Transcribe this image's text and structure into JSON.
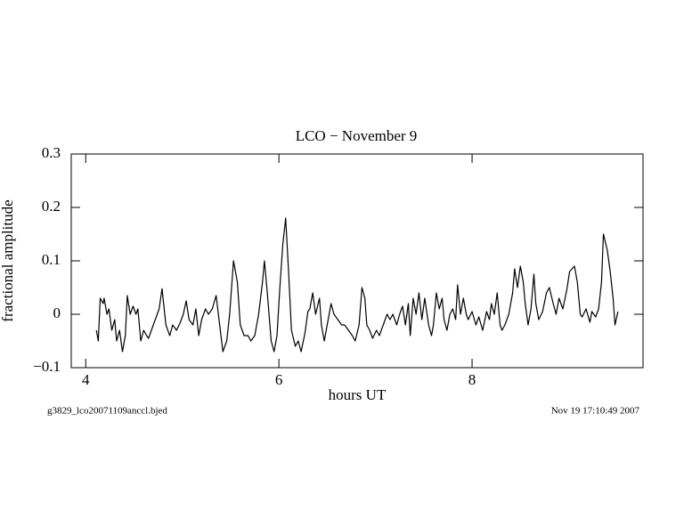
{
  "chart_data": {
    "type": "line",
    "title": "LCO − November 9",
    "xlabel": "hours UT",
    "ylabel": "fractional amplitude",
    "annotations": [
      "g3829_lco20071109anccl.bjed",
      "Nov 19 17:10:49 2007"
    ],
    "xlim": [
      3.85,
      9.77
    ],
    "ylim": [
      -0.1,
      0.3
    ],
    "xticks": [
      4,
      6,
      8
    ],
    "yticks": [
      {
        "value": -0.1,
        "label": "−0.1"
      },
      0,
      0.1,
      0.2,
      0.3
    ],
    "grid": false,
    "series": [
      {
        "color": "#000000",
        "x": [
          4.11,
          4.13,
          4.15,
          4.18,
          4.19,
          4.22,
          4.24,
          4.27,
          4.3,
          4.32,
          4.35,
          4.38,
          4.41,
          4.43,
          4.46,
          4.49,
          4.52,
          4.54,
          4.57,
          4.6,
          4.63,
          4.65,
          4.68,
          4.72,
          4.76,
          4.79,
          4.83,
          4.87,
          4.9,
          4.94,
          4.98,
          5.01,
          5.04,
          5.07,
          5.11,
          5.14,
          5.17,
          5.2,
          5.24,
          5.27,
          5.31,
          5.35,
          5.38,
          5.42,
          5.46,
          5.49,
          5.53,
          5.57,
          5.6,
          5.64,
          5.68,
          5.71,
          5.75,
          5.79,
          5.83,
          5.85,
          5.88,
          5.92,
          5.95,
          5.98,
          6.01,
          6.04,
          6.07,
          6.1,
          6.13,
          6.17,
          6.2,
          6.23,
          6.27,
          6.3,
          6.32,
          6.35,
          6.38,
          6.42,
          6.44,
          6.47,
          6.5,
          6.54,
          6.57,
          6.61,
          6.65,
          6.68,
          6.72,
          6.76,
          6.79,
          6.83,
          6.86,
          6.89,
          6.91,
          6.94,
          6.97,
          7.01,
          7.04,
          7.08,
          7.12,
          7.15,
          7.18,
          7.22,
          7.25,
          7.28,
          7.31,
          7.34,
          7.36,
          7.39,
          7.42,
          7.45,
          7.48,
          7.51,
          7.55,
          7.58,
          7.6,
          7.63,
          7.66,
          7.69,
          7.71,
          7.74,
          7.77,
          7.8,
          7.83,
          7.85,
          7.88,
          7.91,
          7.94,
          7.96,
          8.0,
          8.04,
          8.07,
          8.11,
          8.15,
          8.18,
          8.2,
          8.23,
          8.26,
          8.29,
          8.31,
          8.34,
          8.38,
          8.42,
          8.44,
          8.47,
          8.5,
          8.53,
          8.55,
          8.58,
          8.61,
          8.64,
          8.66,
          8.69,
          8.73,
          8.77,
          8.8,
          8.84,
          8.87,
          8.9,
          8.94,
          8.98,
          9.01,
          9.06,
          9.09,
          9.12,
          9.14,
          9.18,
          9.22,
          9.24,
          9.28,
          9.31,
          9.34,
          9.36,
          9.4,
          9.43,
          9.46,
          9.48,
          9.51
        ],
        "values": [
          -0.03,
          -0.05,
          0.03,
          0.02,
          0.03,
          0,
          0.01,
          -0.03,
          -0.01,
          -0.05,
          -0.03,
          -0.07,
          -0.04,
          0.035,
          0,
          0.015,
          0,
          0.01,
          -0.05,
          -0.03,
          -0.04,
          -0.045,
          -0.03,
          -0.01,
          0.01,
          0.048,
          -0.02,
          -0.04,
          -0.02,
          -0.03,
          -0.015,
          0,
          0.025,
          -0.01,
          -0.02,
          0.01,
          -0.04,
          -0.01,
          0.01,
          0,
          0.01,
          0.035,
          -0.01,
          -0.07,
          -0.05,
          0,
          0.1,
          0.06,
          -0.02,
          -0.04,
          -0.04,
          -0.05,
          -0.04,
          0,
          0.06,
          0.1,
          0.04,
          -0.05,
          -0.07,
          -0.04,
          0.05,
          0.13,
          0.18,
          0.08,
          -0.03,
          -0.06,
          -0.05,
          -0.07,
          -0.035,
          0.005,
          0.01,
          0.04,
          0,
          0.03,
          -0.02,
          -0.05,
          -0.02,
          0.02,
          0,
          -0.01,
          -0.02,
          -0.02,
          -0.03,
          -0.04,
          -0.05,
          -0.02,
          0.05,
          0.03,
          -0.02,
          -0.03,
          -0.045,
          -0.03,
          -0.04,
          -0.02,
          0,
          -0.01,
          0,
          -0.02,
          0,
          0.015,
          -0.02,
          0.02,
          -0.04,
          0.03,
          0,
          0.04,
          -0.01,
          0.03,
          -0.02,
          -0.04,
          -0.02,
          0.04,
          0.01,
          0.03,
          -0.01,
          -0.03,
          0,
          0.01,
          -0.01,
          0.055,
          0,
          0.03,
          0,
          -0.01,
          0.005,
          -0.02,
          -0.005,
          -0.03,
          0.005,
          -0.01,
          0.02,
          0,
          0.04,
          -0.02,
          -0.03,
          -0.02,
          0,
          0.04,
          0.085,
          0.05,
          0.09,
          0.06,
          0.02,
          -0.02,
          0.01,
          0.075,
          0.02,
          -0.01,
          0.005,
          0.04,
          0.05,
          0.02,
          0,
          0.03,
          0.01,
          0.045,
          0.08,
          0.09,
          0.06,
          0,
          -0.005,
          0.01,
          -0.015,
          0.005,
          -0.005,
          0.01,
          0.06,
          0.15,
          0.12,
          0.08,
          0.03,
          -0.02,
          0.005
        ]
      }
    ]
  }
}
